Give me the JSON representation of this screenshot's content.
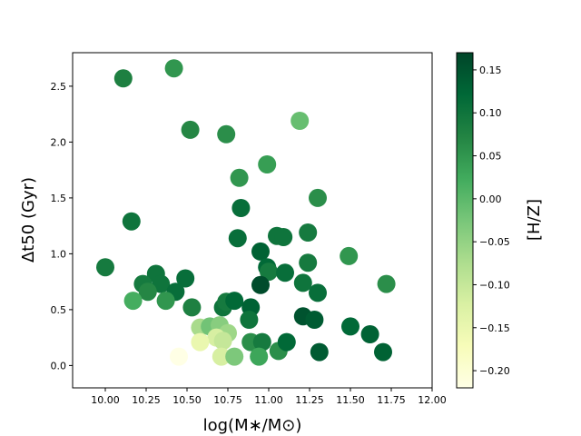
{
  "chart_data": {
    "type": "scatter",
    "xlabel": "log(M∗/M⊙)",
    "ylabel": "Δt50 (Gyr)",
    "xlim": [
      9.8,
      12.0
    ],
    "ylim": [
      -0.2,
      2.8
    ],
    "xticks": [
      "10.00",
      "10.25",
      "10.50",
      "10.75",
      "11.00",
      "11.25",
      "11.50",
      "11.75",
      "12.00"
    ],
    "yticks": [
      "0.0",
      "0.5",
      "1.0",
      "1.5",
      "2.0",
      "2.5"
    ],
    "colorbar": {
      "label": "[H/Z]",
      "range": [
        -0.22,
        0.17
      ],
      "ticks": [
        "−0.20",
        "−0.15",
        "−0.10",
        "−0.05",
        "0.00",
        "0.05",
        "0.10",
        "0.15"
      ],
      "colormap": "YlGn",
      "colors": [
        "#ffffe5",
        "#f7fcb9",
        "#d9f0a3",
        "#addd8e",
        "#78c679",
        "#41ab5d",
        "#238443",
        "#006837",
        "#004529"
      ]
    },
    "points": [
      {
        "x": 10.11,
        "y": 2.57,
        "c": 0.08
      },
      {
        "x": 10.42,
        "y": 2.66,
        "c": 0.05
      },
      {
        "x": 10.52,
        "y": 2.11,
        "c": 0.07
      },
      {
        "x": 10.74,
        "y": 2.07,
        "c": 0.06
      },
      {
        "x": 11.19,
        "y": 2.19,
        "c": -0.01
      },
      {
        "x": 10.82,
        "y": 1.68,
        "c": 0.05
      },
      {
        "x": 10.99,
        "y": 1.8,
        "c": 0.04
      },
      {
        "x": 11.3,
        "y": 1.5,
        "c": 0.06
      },
      {
        "x": 10.16,
        "y": 1.29,
        "c": 0.1
      },
      {
        "x": 10.83,
        "y": 1.41,
        "c": 0.11
      },
      {
        "x": 10.81,
        "y": 1.14,
        "c": 0.11
      },
      {
        "x": 10.95,
        "y": 1.02,
        "c": 0.13
      },
      {
        "x": 11.05,
        "y": 1.16,
        "c": 0.1
      },
      {
        "x": 11.09,
        "y": 1.15,
        "c": 0.1
      },
      {
        "x": 11.24,
        "y": 1.19,
        "c": 0.09
      },
      {
        "x": 11.49,
        "y": 0.98,
        "c": 0.05
      },
      {
        "x": 11.72,
        "y": 0.73,
        "c": 0.06
      },
      {
        "x": 10.0,
        "y": 0.88,
        "c": 0.09
      },
      {
        "x": 10.99,
        "y": 0.88,
        "c": 0.12
      },
      {
        "x": 11.0,
        "y": 0.84,
        "c": 0.09
      },
      {
        "x": 11.1,
        "y": 0.83,
        "c": 0.11
      },
      {
        "x": 11.24,
        "y": 0.92,
        "c": 0.09
      },
      {
        "x": 10.95,
        "y": 0.72,
        "c": 0.16
      },
      {
        "x": 11.21,
        "y": 0.74,
        "c": 0.1
      },
      {
        "x": 11.3,
        "y": 0.65,
        "c": 0.11
      },
      {
        "x": 10.31,
        "y": 0.82,
        "c": 0.1
      },
      {
        "x": 10.23,
        "y": 0.73,
        "c": 0.09
      },
      {
        "x": 10.34,
        "y": 0.73,
        "c": 0.1
      },
      {
        "x": 10.26,
        "y": 0.66,
        "c": 0.07
      },
      {
        "x": 10.49,
        "y": 0.78,
        "c": 0.11
      },
      {
        "x": 10.43,
        "y": 0.66,
        "c": 0.11
      },
      {
        "x": 10.17,
        "y": 0.58,
        "c": 0.02
      },
      {
        "x": 10.37,
        "y": 0.58,
        "c": 0.05
      },
      {
        "x": 10.53,
        "y": 0.52,
        "c": 0.08
      },
      {
        "x": 10.72,
        "y": 0.52,
        "c": 0.1
      },
      {
        "x": 10.74,
        "y": 0.57,
        "c": 0.09
      },
      {
        "x": 10.79,
        "y": 0.58,
        "c": 0.12
      },
      {
        "x": 10.89,
        "y": 0.52,
        "c": 0.13
      },
      {
        "x": 10.88,
        "y": 0.41,
        "c": 0.1
      },
      {
        "x": 11.21,
        "y": 0.44,
        "c": 0.15
      },
      {
        "x": 11.28,
        "y": 0.41,
        "c": 0.14
      },
      {
        "x": 11.5,
        "y": 0.35,
        "c": 0.12
      },
      {
        "x": 11.62,
        "y": 0.28,
        "c": 0.13
      },
      {
        "x": 10.58,
        "y": 0.34,
        "c": -0.07
      },
      {
        "x": 10.64,
        "y": 0.35,
        "c": -0.02
      },
      {
        "x": 10.7,
        "y": 0.36,
        "c": -0.04
      },
      {
        "x": 10.75,
        "y": 0.29,
        "c": -0.06
      },
      {
        "x": 10.68,
        "y": 0.25,
        "c": -0.12
      },
      {
        "x": 10.58,
        "y": 0.21,
        "c": -0.15
      },
      {
        "x": 10.72,
        "y": 0.22,
        "c": -0.1
      },
      {
        "x": 10.89,
        "y": 0.21,
        "c": 0.06
      },
      {
        "x": 10.96,
        "y": 0.21,
        "c": 0.09
      },
      {
        "x": 11.06,
        "y": 0.13,
        "c": 0.06
      },
      {
        "x": 11.11,
        "y": 0.21,
        "c": 0.12
      },
      {
        "x": 11.31,
        "y": 0.12,
        "c": 0.14
      },
      {
        "x": 11.7,
        "y": 0.12,
        "c": 0.13
      },
      {
        "x": 10.45,
        "y": 0.08,
        "c": -0.22
      },
      {
        "x": 10.71,
        "y": 0.08,
        "c": -0.12
      },
      {
        "x": 10.79,
        "y": 0.08,
        "c": -0.03
      },
      {
        "x": 10.94,
        "y": 0.08,
        "c": 0.03
      }
    ]
  }
}
